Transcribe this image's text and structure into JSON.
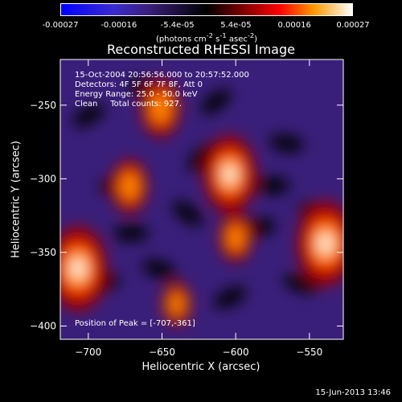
{
  "colorbar": {
    "ticks": [
      "-0.00027",
      "-0.00016",
      "-5.4e-05",
      "5.4e-05",
      "0.00016",
      "0.00027"
    ],
    "units_prefix": "(photons cm",
    "units_exp1": "-2",
    "units_mid": " s",
    "units_exp2": "-1",
    "units_mid2": " asec",
    "units_exp3": "-2",
    "units_suffix": ")"
  },
  "info": {
    "time_range": "15-Oct-2004 20:56:56.000 to 20:57:52.000",
    "detectors": "Detectors: 4F 5F 6F 7F 8F, Att 0",
    "energy": "Energy Range: 25.0 - 50.0 keV",
    "clean": "Clean     Total counts: 927.",
    "peak": "Position of Peak = [-707,-361]"
  },
  "timestamp": "15-Jun-2013 13:46",
  "chart_data": {
    "type": "heatmap",
    "title": "Reconstructed RHESSI Image",
    "xlabel": "Heliocentric X (arcsec)",
    "ylabel": "Heliocentric Y (arcsec)",
    "xlim": [
      -719,
      -527
    ],
    "ylim": [
      -409,
      -219
    ],
    "xticks": [
      -700,
      -650,
      -600,
      -550
    ],
    "yticks": [
      -250,
      -300,
      -350,
      -400
    ],
    "colorbar_range": [
      -0.00027,
      0.00027
    ],
    "peak": [
      -707,
      -361
    ],
    "bright_sources": [
      {
        "x": -707,
        "y": -361,
        "intensity": 0.00027
      },
      {
        "x": -539,
        "y": -344,
        "intensity": 0.00027
      },
      {
        "x": -604,
        "y": -297,
        "intensity": 0.00024
      },
      {
        "x": -651,
        "y": -252,
        "intensity": 0.00016
      },
      {
        "x": -672,
        "y": -305,
        "intensity": 0.00014
      },
      {
        "x": -600,
        "y": -340,
        "intensity": 0.00012
      },
      {
        "x": -640,
        "y": -385,
        "intensity": 0.0001
      }
    ]
  }
}
